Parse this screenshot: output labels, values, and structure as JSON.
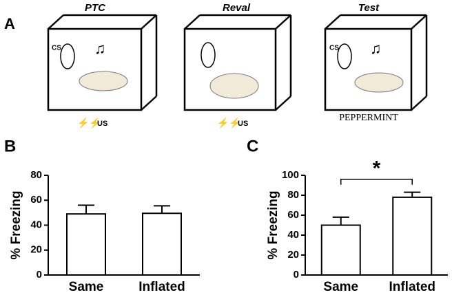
{
  "panel_a": {
    "label": "A",
    "boxes": [
      {
        "title": "PTC",
        "cs": "CS",
        "us": "US"
      },
      {
        "title": "Reval",
        "us": "US"
      },
      {
        "title": "Test",
        "cs": "CS",
        "odor": "PEPPERMINT"
      }
    ]
  },
  "chart_data": [
    {
      "type": "bar",
      "panel_label": "B",
      "ylabel": "% Freezing",
      "categories": [
        "Same",
        "Inflated"
      ],
      "values": [
        49,
        49.5
      ],
      "errors": [
        7,
        6
      ],
      "color": "#ffffff",
      "ylim": [
        0,
        80
      ],
      "yticks": [
        0,
        20,
        40,
        60,
        80
      ]
    },
    {
      "type": "bar",
      "panel_label": "C",
      "ylabel": "% Freezing",
      "categories": [
        "Same",
        "Inflated"
      ],
      "values": [
        50,
        78
      ],
      "errors": [
        8,
        5
      ],
      "color": "#ffffff",
      "ylim": [
        0,
        100
      ],
      "yticks": [
        0,
        20,
        40,
        60,
        80,
        100
      ],
      "significance": {
        "label": "*",
        "level": 96
      }
    }
  ]
}
